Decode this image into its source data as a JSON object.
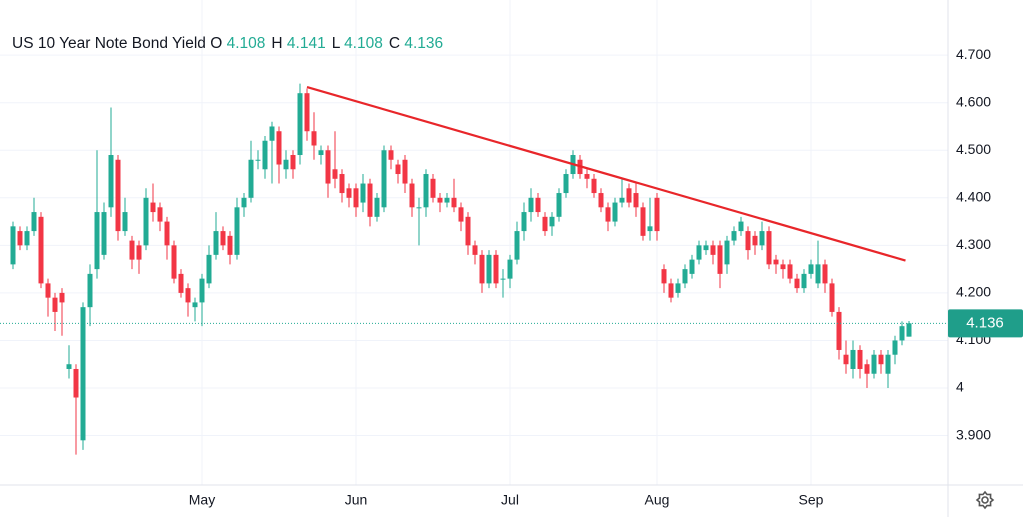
{
  "chart_data": {
    "type": "candlestick",
    "title": "US 10 Year Note Bond Yield",
    "ohlc_legend": [
      {
        "label": "O",
        "value": 4.108
      },
      {
        "label": "H",
        "value": 4.141
      },
      {
        "label": "L",
        "value": 4.108
      },
      {
        "label": "C",
        "value": 4.136
      }
    ],
    "categories": [
      null,
      null,
      null,
      null,
      null,
      null,
      null,
      null,
      null,
      null,
      null,
      null,
      null,
      null,
      null,
      null,
      null,
      null,
      null,
      null,
      null,
      null,
      null,
      null,
      null,
      null,
      null,
      "May",
      null,
      null,
      null,
      null,
      null,
      null,
      null,
      null,
      null,
      null,
      null,
      null,
      null,
      null,
      null,
      null,
      null,
      null,
      null,
      null,
      null,
      "Jun",
      null,
      null,
      null,
      null,
      null,
      null,
      null,
      null,
      null,
      null,
      null,
      null,
      null,
      null,
      null,
      null,
      null,
      null,
      null,
      null,
      null,
      "Jul",
      null,
      null,
      null,
      null,
      null,
      null,
      null,
      null,
      null,
      null,
      null,
      null,
      null,
      null,
      null,
      null,
      null,
      null,
      null,
      null,
      "Aug",
      null,
      null,
      null,
      null,
      null,
      null,
      null,
      null,
      null,
      null,
      null,
      null,
      null,
      null,
      null,
      null,
      null,
      null,
      null,
      null,
      null,
      "Sep",
      null,
      null,
      null,
      null,
      null,
      null,
      null,
      null,
      null,
      null,
      null,
      null,
      null,
      null
    ],
    "open": [
      4.26,
      4.33,
      4.3,
      4.33,
      4.36,
      4.22,
      4.19,
      4.2,
      4.04,
      4.04,
      3.89,
      4.17,
      4.25,
      4.28,
      4.38,
      4.48,
      4.33,
      4.31,
      4.3,
      4.3,
      4.39,
      4.38,
      4.35,
      4.3,
      4.24,
      4.21,
      4.17,
      4.18,
      4.22,
      4.28,
      4.33,
      4.32,
      4.28,
      4.38,
      4.4,
      4.48,
      4.46,
      4.52,
      4.54,
      4.46,
      4.49,
      4.49,
      4.62,
      4.54,
      4.49,
      4.5,
      4.46,
      4.45,
      4.42,
      4.42,
      4.39,
      4.43,
      4.36,
      4.38,
      4.5,
      4.47,
      4.48,
      4.43,
      4.38,
      4.38,
      4.44,
      4.4,
      4.39,
      4.4,
      4.38,
      4.36,
      4.3,
      4.28,
      4.22,
      4.28,
      4.23,
      4.23,
      4.27,
      4.33,
      4.37,
      4.4,
      4.36,
      4.34,
      4.36,
      4.41,
      4.45,
      4.48,
      4.45,
      4.44,
      4.41,
      4.38,
      4.35,
      4.39,
      4.42,
      4.41,
      4.38,
      4.33,
      4.4,
      4.25,
      4.22,
      4.2,
      4.22,
      4.24,
      4.27,
      4.29,
      4.3,
      4.3,
      4.26,
      4.31,
      4.33,
      4.33,
      4.32,
      4.3,
      4.33,
      4.27,
      4.26,
      4.26,
      4.23,
      4.21,
      4.24,
      4.22,
      4.26,
      4.22,
      4.16,
      4.07,
      4.04,
      4.08,
      4.05,
      4.03,
      4.07,
      4.03,
      4.07,
      4.1,
      4.108
    ],
    "high": [
      4.35,
      4.34,
      4.34,
      4.4,
      4.37,
      4.23,
      4.2,
      4.21,
      4.09,
      4.05,
      4.18,
      4.26,
      4.5,
      4.39,
      4.59,
      4.49,
      4.4,
      4.32,
      4.31,
      4.42,
      4.43,
      4.39,
      4.36,
      4.31,
      4.25,
      4.22,
      4.19,
      4.24,
      4.3,
      4.37,
      4.34,
      4.33,
      4.4,
      4.41,
      4.52,
      4.5,
      4.53,
      4.56,
      4.55,
      4.5,
      4.5,
      4.64,
      4.63,
      4.58,
      4.51,
      4.51,
      4.54,
      4.46,
      4.43,
      4.43,
      4.45,
      4.44,
      4.41,
      4.51,
      4.51,
      4.48,
      4.49,
      4.44,
      4.4,
      4.46,
      4.45,
      4.41,
      4.41,
      4.44,
      4.39,
      4.37,
      4.31,
      4.29,
      4.29,
      4.29,
      4.25,
      4.28,
      4.35,
      4.39,
      4.42,
      4.41,
      4.37,
      4.37,
      4.42,
      4.46,
      4.5,
      4.49,
      4.46,
      4.45,
      4.42,
      4.39,
      4.4,
      4.44,
      4.43,
      4.43,
      4.39,
      4.4,
      4.41,
      4.26,
      4.23,
      4.23,
      4.26,
      4.28,
      4.31,
      4.31,
      4.31,
      4.31,
      4.32,
      4.34,
      4.36,
      4.34,
      4.33,
      4.35,
      4.34,
      4.28,
      4.27,
      4.27,
      4.24,
      4.25,
      4.27,
      4.31,
      4.27,
      4.23,
      4.17,
      4.1,
      4.1,
      4.09,
      4.06,
      4.08,
      4.08,
      4.08,
      4.11,
      4.14,
      4.141
    ],
    "low": [
      4.25,
      4.29,
      4.29,
      4.32,
      4.21,
      4.15,
      4.12,
      4.11,
      4.02,
      3.86,
      3.87,
      4.13,
      4.23,
      4.27,
      4.36,
      4.31,
      4.32,
      4.25,
      4.24,
      4.29,
      4.35,
      4.33,
      4.27,
      4.22,
      4.19,
      4.15,
      4.14,
      4.13,
      4.21,
      4.27,
      4.29,
      4.26,
      4.27,
      4.36,
      4.39,
      4.46,
      4.44,
      4.43,
      4.43,
      4.44,
      4.44,
      4.47,
      4.52,
      4.48,
      4.47,
      4.4,
      4.42,
      4.39,
      4.38,
      4.36,
      4.37,
      4.34,
      4.35,
      4.37,
      4.46,
      4.43,
      4.41,
      4.36,
      4.3,
      4.36,
      4.39,
      4.37,
      4.38,
      4.37,
      4.33,
      4.28,
      4.26,
      4.2,
      4.21,
      4.21,
      4.19,
      4.21,
      4.26,
      4.31,
      4.35,
      4.36,
      4.32,
      4.32,
      4.35,
      4.4,
      4.44,
      4.44,
      4.42,
      4.4,
      4.37,
      4.33,
      4.34,
      4.38,
      4.38,
      4.36,
      4.31,
      4.31,
      4.31,
      4.2,
      4.18,
      4.19,
      4.21,
      4.23,
      4.26,
      4.28,
      4.26,
      4.21,
      4.24,
      4.3,
      4.32,
      4.27,
      4.28,
      4.29,
      4.25,
      4.24,
      4.23,
      4.22,
      4.2,
      4.2,
      4.23,
      4.21,
      4.2,
      4.15,
      4.06,
      4.03,
      4.02,
      4.02,
      4.0,
      4.02,
      4.03,
      4.0,
      4.05,
      4.09,
      4.108
    ],
    "close": [
      4.34,
      4.3,
      4.33,
      4.37,
      4.22,
      4.19,
      4.16,
      4.18,
      4.05,
      3.98,
      4.17,
      4.24,
      4.37,
      4.37,
      4.49,
      4.33,
      4.37,
      4.27,
      4.27,
      4.4,
      4.37,
      4.35,
      4.3,
      4.23,
      4.2,
      4.18,
      4.18,
      4.23,
      4.28,
      4.33,
      4.3,
      4.28,
      4.38,
      4.4,
      4.48,
      4.48,
      4.52,
      4.55,
      4.47,
      4.48,
      4.46,
      4.62,
      4.54,
      4.51,
      4.5,
      4.43,
      4.44,
      4.41,
      4.4,
      4.38,
      4.43,
      4.36,
      4.4,
      4.5,
      4.48,
      4.45,
      4.43,
      4.38,
      4.38,
      4.45,
      4.4,
      4.39,
      4.4,
      4.38,
      4.35,
      4.3,
      4.28,
      4.22,
      4.28,
      4.22,
      4.23,
      4.27,
      4.33,
      4.37,
      4.4,
      4.37,
      4.33,
      4.36,
      4.41,
      4.45,
      4.49,
      4.45,
      4.44,
      4.41,
      4.38,
      4.35,
      4.39,
      4.4,
      4.39,
      4.38,
      4.32,
      4.34,
      4.33,
      4.22,
      4.19,
      4.22,
      4.25,
      4.27,
      4.3,
      4.3,
      4.28,
      4.24,
      4.31,
      4.33,
      4.35,
      4.29,
      4.3,
      4.33,
      4.26,
      4.26,
      4.25,
      4.23,
      4.21,
      4.24,
      4.26,
      4.26,
      4.22,
      4.16,
      4.08,
      4.05,
      4.08,
      4.04,
      4.03,
      4.07,
      4.05,
      4.07,
      4.1,
      4.13,
      4.136
    ],
    "up_color": "#22ab94",
    "down_color": "#f23645",
    "ylim": [
      3.796,
      4.816
    ],
    "yticks": [
      {
        "value": 3.9,
        "label": "3.900"
      },
      4,
      {
        "value": 4.1,
        "label": "4.100"
      },
      {
        "value": 4.2,
        "label": "4.200"
      },
      {
        "value": 4.3,
        "label": "4.300"
      },
      {
        "value": 4.4,
        "label": "4.400"
      },
      {
        "value": 4.5,
        "label": "4.500"
      },
      {
        "value": 4.6,
        "label": "4.600"
      },
      {
        "value": 4.7,
        "label": "4.700"
      }
    ],
    "grid": true,
    "last_price": 4.136,
    "trendline": {
      "color": "#e8262a",
      "start": {
        "x": 42,
        "value": 4.633
      },
      "end": {
        "x": 127.5,
        "value": 4.268
      }
    }
  }
}
